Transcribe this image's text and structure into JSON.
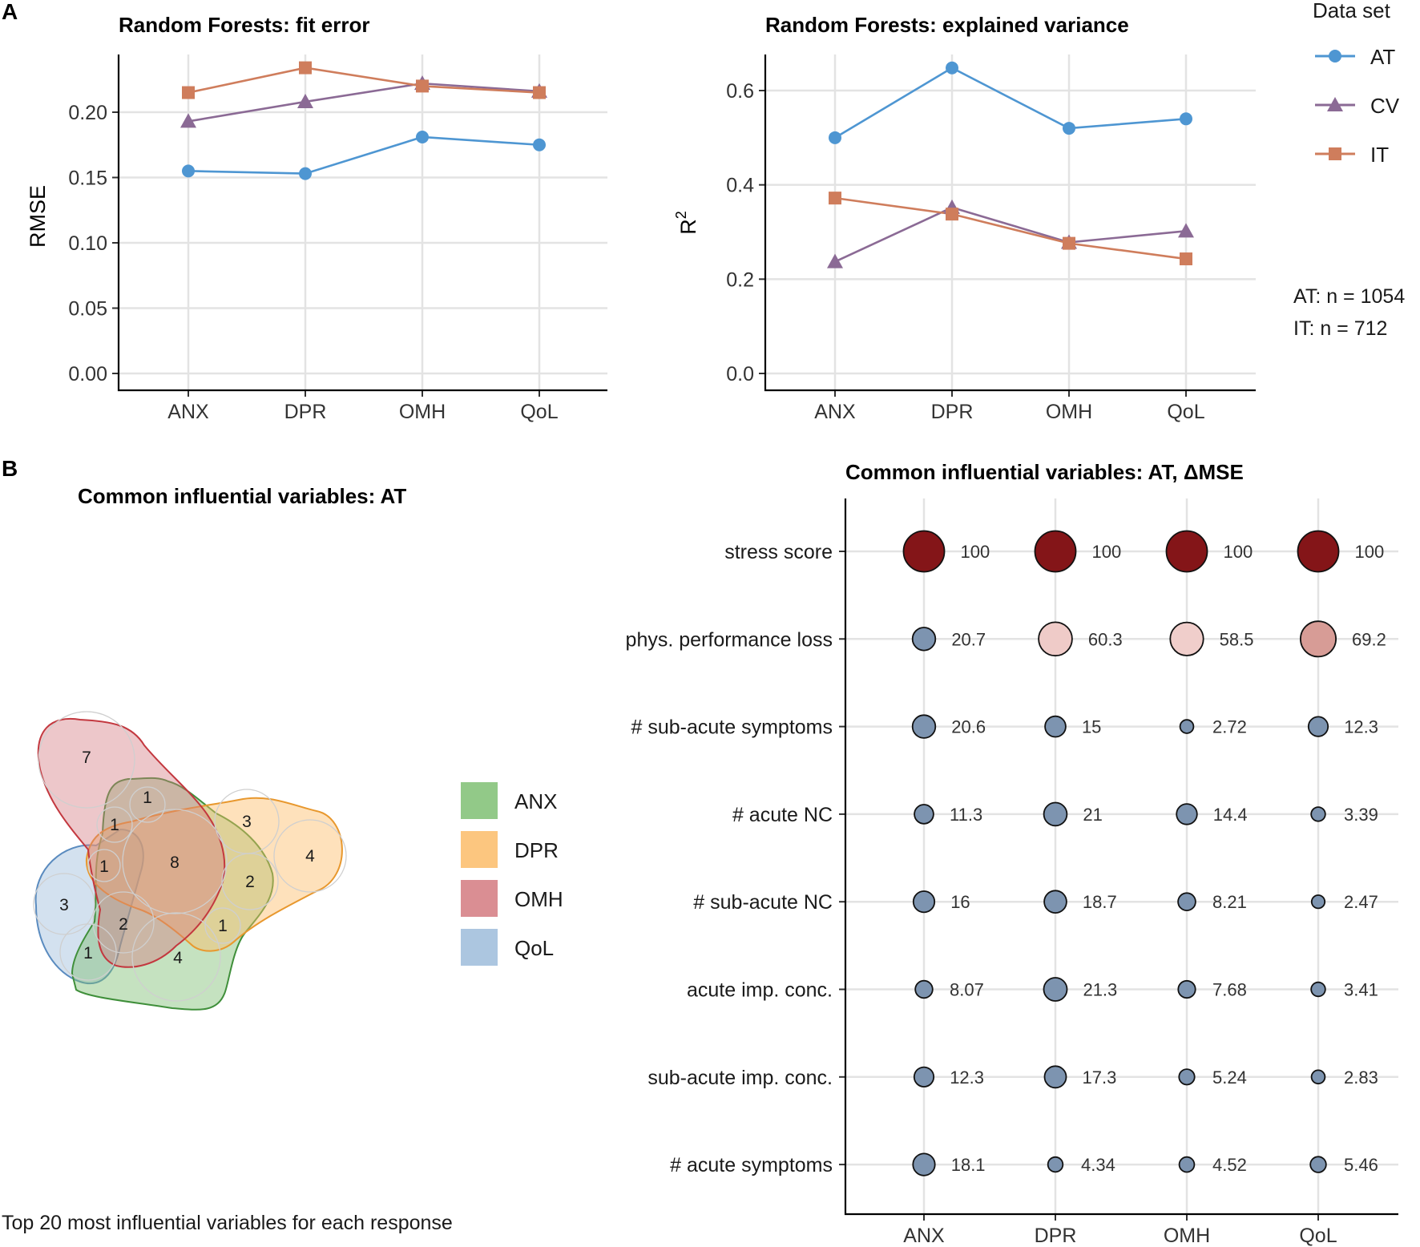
{
  "panel_labels": {
    "a": "A",
    "b": "B"
  },
  "colors": {
    "AT": "#4e96d2",
    "CV": "#8b6a95",
    "IT": "#cf7d5c",
    "ANX": "#7fbf73",
    "DPR": "#fcbc68",
    "OMH": "#d47a80",
    "QoL": "#9dbcdb",
    "bubble_low": "#5d7c9e",
    "bubble_high": "#841518"
  },
  "chart_data": [
    {
      "id": "rmse",
      "type": "line",
      "title": "Random Forests: fit error",
      "xlabel": "",
      "ylabel": "RMSE",
      "categories": [
        "ANX",
        "DPR",
        "OMH",
        "QoL"
      ],
      "ylim": [
        0,
        0.25
      ],
      "yticks": [
        "0.00",
        "0.05",
        "0.10",
        "0.15",
        "0.20"
      ],
      "series": [
        {
          "name": "AT",
          "marker": "circle",
          "values": [
            0.155,
            0.153,
            0.181,
            0.175
          ]
        },
        {
          "name": "CV",
          "marker": "triangle",
          "values": [
            0.193,
            0.208,
            0.222,
            0.216
          ]
        },
        {
          "name": "IT",
          "marker": "square",
          "values": [
            0.215,
            0.234,
            0.22,
            0.215
          ]
        }
      ]
    },
    {
      "id": "r2",
      "type": "line",
      "title": "Random Forests: explained variance",
      "xlabel": "",
      "ylabel": "R",
      "ylabel_sup": "2",
      "categories": [
        "ANX",
        "DPR",
        "OMH",
        "QoL"
      ],
      "ylim": [
        0,
        0.67
      ],
      "yticks": [
        "0.0",
        "0.2",
        "0.4",
        "0.6"
      ],
      "series": [
        {
          "name": "AT",
          "marker": "circle",
          "values": [
            0.5,
            0.648,
            0.52,
            0.54
          ]
        },
        {
          "name": "CV",
          "marker": "triangle",
          "values": [
            0.237,
            0.352,
            0.278,
            0.302
          ]
        },
        {
          "name": "IT",
          "marker": "square",
          "values": [
            0.372,
            0.338,
            0.276,
            0.243
          ]
        }
      ]
    },
    {
      "id": "venn",
      "type": "venn",
      "title": "Common influential variables: AT",
      "caption": "Top 20 most influential variables for each response",
      "sets": [
        "ANX",
        "DPR",
        "OMH",
        "QoL"
      ],
      "region_counts": [
        7,
        1,
        1,
        3,
        4,
        1,
        8,
        2,
        3,
        2,
        1,
        1,
        4
      ]
    },
    {
      "id": "bubble",
      "type": "bubble",
      "title": "Common influential variables: AT, ΔMSE",
      "categories": [
        "ANX",
        "DPR",
        "OMH",
        "QoL"
      ],
      "rows": [
        {
          "label": "stress score",
          "values": [
            "100",
            "100",
            "100",
            "100"
          ]
        },
        {
          "label": "phys. performance loss",
          "values": [
            "20.7",
            "60.3",
            "58.5",
            "69.2"
          ]
        },
        {
          "label": "# sub-acute symptoms",
          "values": [
            "20.6",
            "15",
            "2.72",
            "12.3"
          ]
        },
        {
          "label": "# acute NC",
          "values": [
            "11.3",
            "21",
            "14.4",
            "3.39"
          ]
        },
        {
          "label": "# sub-acute NC",
          "values": [
            "16",
            "18.7",
            "8.21",
            "2.47"
          ]
        },
        {
          "label": "acute imp. conc.",
          "values": [
            "8.07",
            "21.3",
            "7.68",
            "3.41"
          ]
        },
        {
          "label": "sub-acute imp. conc.",
          "values": [
            "12.3",
            "17.3",
            "5.24",
            "2.83"
          ]
        },
        {
          "label": "# acute symptoms",
          "values": [
            "18.1",
            "4.34",
            "4.52",
            "5.46"
          ]
        }
      ]
    }
  ],
  "legend_dataset": {
    "title": "Data set",
    "items": [
      {
        "name": "AT",
        "marker": "circle"
      },
      {
        "name": "CV",
        "marker": "triangle"
      },
      {
        "name": "IT",
        "marker": "square"
      }
    ]
  },
  "legend_venn": {
    "items": [
      "ANX",
      "DPR",
      "OMH",
      "QoL"
    ]
  },
  "sample_notes": [
    "AT: n = 1054",
    "IT: n = 712"
  ]
}
